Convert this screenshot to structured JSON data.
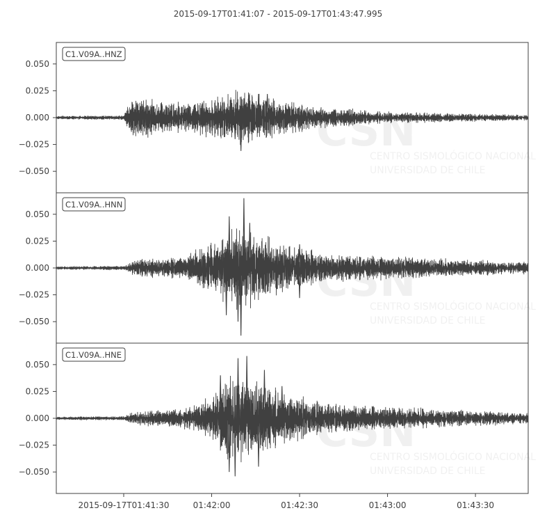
{
  "chart_data": {
    "type": "line",
    "title": "2015-09-17T01:41:07  -  2015-09-17T01:43:47.995",
    "x_range": [
      "2015-09-17T01:41:07",
      "2015-09-17T01:43:47.995"
    ],
    "x_ticks": [
      {
        "time": "2015-09-17T01:41:30",
        "label": "2015-09-17T01:41:30"
      },
      {
        "time": "2015-09-17T01:42:00",
        "label": "01:42:00"
      },
      {
        "time": "2015-09-17T01:42:30",
        "label": "01:42:30"
      },
      {
        "time": "2015-09-17T01:43:00",
        "label": "01:43:00"
      },
      {
        "time": "2015-09-17T01:43:30",
        "label": "01:43:30"
      }
    ],
    "ylim": [
      -0.07,
      0.07
    ],
    "y_ticks": [
      0.05,
      0.025,
      0.0,
      -0.025,
      -0.05
    ],
    "y_tick_labels": [
      "0.050",
      "0.025",
      "0.000",
      "−0.025",
      "−0.050"
    ],
    "grid": false,
    "color": "#404040",
    "series": [
      {
        "name": "C1.V09A..HNZ",
        "envelope": [
          {
            "t": "2015-09-17T01:41:07",
            "amp": 0.0012
          },
          {
            "t": "2015-09-17T01:41:30",
            "amp": 0.0015
          },
          {
            "t": "2015-09-17T01:41:32",
            "amp": 0.012
          },
          {
            "t": "2015-09-17T01:41:35",
            "amp": 0.014
          },
          {
            "t": "2015-09-17T01:41:50",
            "amp": 0.01
          },
          {
            "t": "2015-09-17T01:42:05",
            "amp": 0.016
          },
          {
            "t": "2015-09-17T01:42:10",
            "amp": 0.02
          },
          {
            "t": "2015-09-17T01:42:20",
            "amp": 0.014
          },
          {
            "t": "2015-09-17T01:42:35",
            "amp": 0.008
          },
          {
            "t": "2015-09-17T01:43:00",
            "amp": 0.004
          },
          {
            "t": "2015-09-17T01:43:47.995",
            "amp": 0.002
          }
        ],
        "spikes": [
          {
            "t": "2015-09-17T01:42:10",
            "value": -0.031
          },
          {
            "t": "2015-09-17T01:42:11",
            "value": 0.018
          },
          {
            "t": "2015-09-17T01:42:16",
            "value": 0.022
          },
          {
            "t": "2015-09-17T01:42:19",
            "value": 0.022
          },
          {
            "t": "2015-09-17T01:42:08",
            "value": -0.02
          }
        ]
      },
      {
        "name": "C1.V09A..HNN",
        "envelope": [
          {
            "t": "2015-09-17T01:41:07",
            "amp": 0.0012
          },
          {
            "t": "2015-09-17T01:41:30",
            "amp": 0.0015
          },
          {
            "t": "2015-09-17T01:41:34",
            "amp": 0.006
          },
          {
            "t": "2015-09-17T01:41:50",
            "amp": 0.008
          },
          {
            "t": "2015-09-17T01:42:00",
            "amp": 0.018
          },
          {
            "t": "2015-09-17T01:42:08",
            "amp": 0.03
          },
          {
            "t": "2015-09-17T01:42:15",
            "amp": 0.025
          },
          {
            "t": "2015-09-17T01:42:25",
            "amp": 0.017
          },
          {
            "t": "2015-09-17T01:42:40",
            "amp": 0.01
          },
          {
            "t": "2015-09-17T01:43:00",
            "amp": 0.008
          },
          {
            "t": "2015-09-17T01:43:47.995",
            "amp": 0.004
          }
        ],
        "spikes": [
          {
            "t": "2015-09-17T01:42:11",
            "value": 0.065
          },
          {
            "t": "2015-09-17T01:42:10",
            "value": -0.063
          },
          {
            "t": "2015-09-17T01:42:06",
            "value": 0.048
          },
          {
            "t": "2015-09-17T01:42:05",
            "value": -0.044
          },
          {
            "t": "2015-09-17T01:42:13",
            "value": 0.042
          },
          {
            "t": "2015-09-17T01:42:09",
            "value": -0.05
          },
          {
            "t": "2015-09-17T01:42:30",
            "value": -0.028
          },
          {
            "t": "2015-09-17T01:42:30",
            "value": 0.022
          }
        ]
      },
      {
        "name": "C1.V09A..HNE",
        "envelope": [
          {
            "t": "2015-09-17T01:41:07",
            "amp": 0.0012
          },
          {
            "t": "2015-09-17T01:41:30",
            "amp": 0.0015
          },
          {
            "t": "2015-09-17T01:41:34",
            "amp": 0.005
          },
          {
            "t": "2015-09-17T01:41:50",
            "amp": 0.007
          },
          {
            "t": "2015-09-17T01:42:00",
            "amp": 0.015
          },
          {
            "t": "2015-09-17T01:42:05",
            "amp": 0.03
          },
          {
            "t": "2015-09-17T01:42:12",
            "amp": 0.03
          },
          {
            "t": "2015-09-17T01:42:25",
            "amp": 0.017
          },
          {
            "t": "2015-09-17T01:42:40",
            "amp": 0.01
          },
          {
            "t": "2015-09-17T01:43:00",
            "amp": 0.008
          },
          {
            "t": "2015-09-17T01:43:47.995",
            "amp": 0.004
          }
        ],
        "spikes": [
          {
            "t": "2015-09-17T01:42:12",
            "value": 0.058
          },
          {
            "t": "2015-09-17T01:42:09",
            "value": 0.056
          },
          {
            "t": "2015-09-17T01:42:08",
            "value": -0.054
          },
          {
            "t": "2015-09-17T01:42:06",
            "value": -0.05
          },
          {
            "t": "2015-09-17T01:42:03",
            "value": 0.04
          },
          {
            "t": "2015-09-17T01:42:16",
            "value": -0.045
          },
          {
            "t": "2015-09-17T01:42:18",
            "value": 0.045
          },
          {
            "t": "2015-09-17T01:42:24",
            "value": 0.03
          }
        ]
      }
    ],
    "watermark": {
      "logo_text": "CSN",
      "lines": [
        "CENTRO SISMOLÓGICO NACIONAL",
        "UNIVERSIDAD DE CHILE"
      ]
    }
  }
}
